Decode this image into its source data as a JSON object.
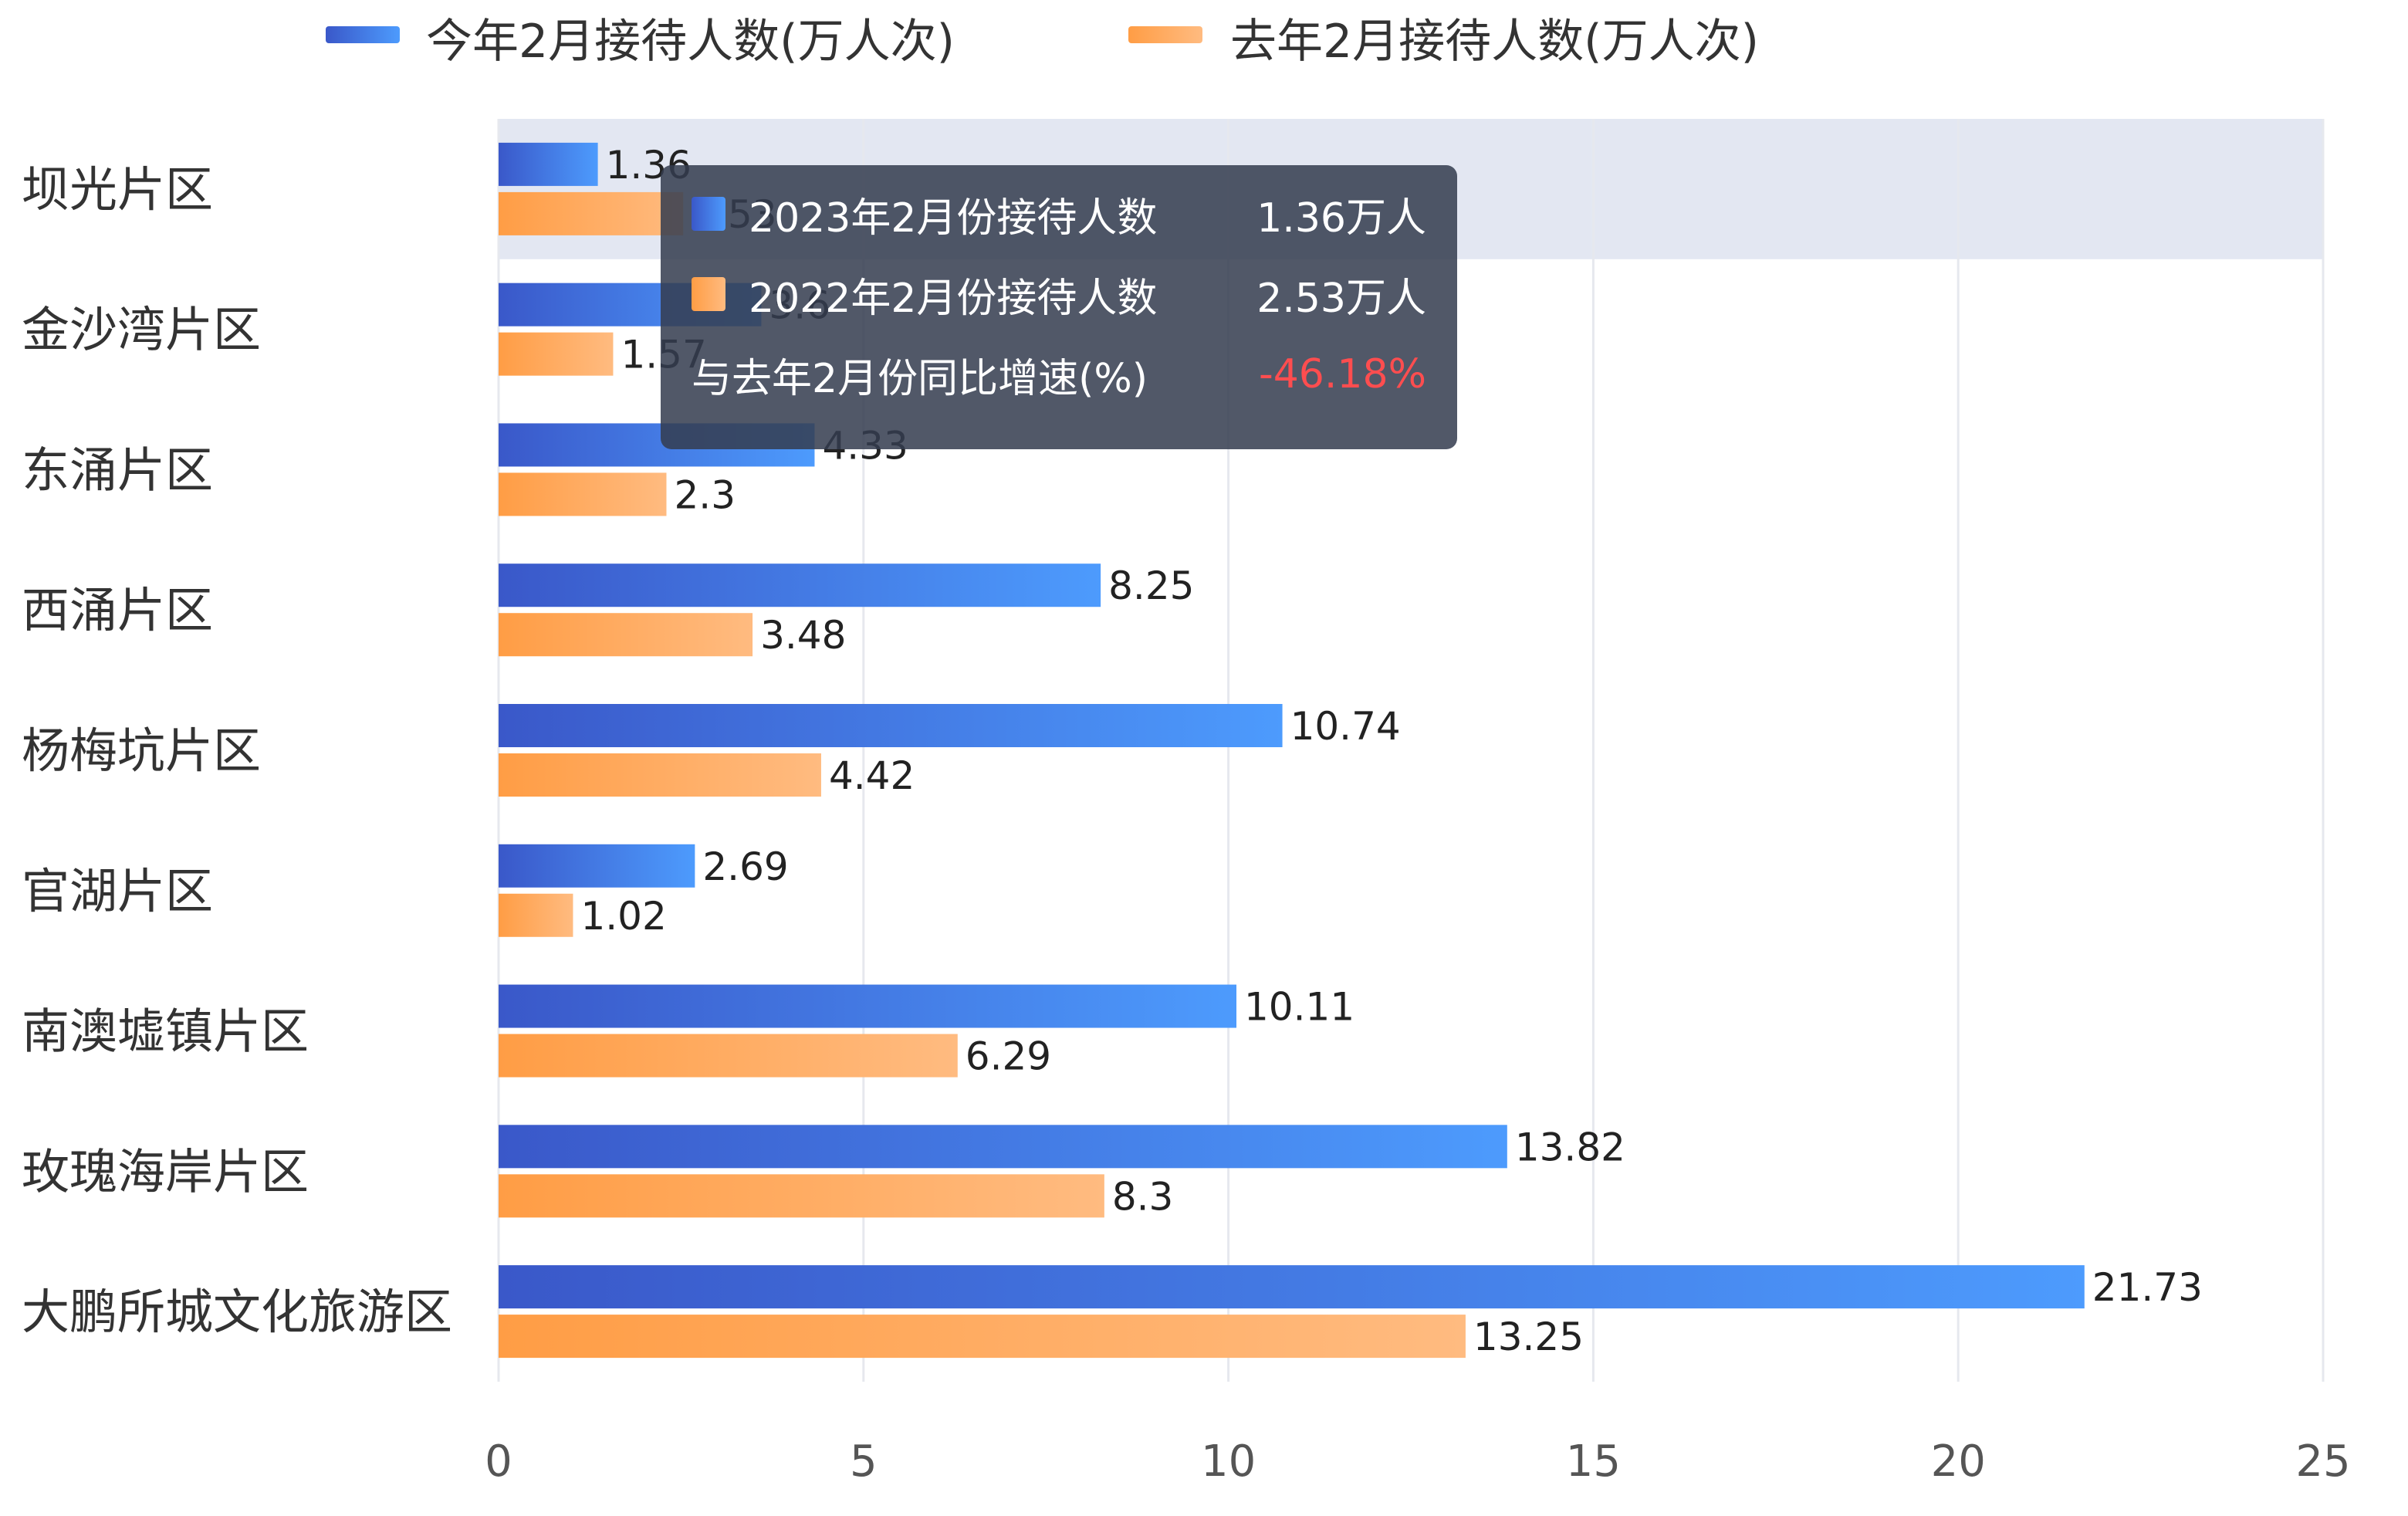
{
  "chart_data": {
    "type": "bar",
    "orientation": "horizontal",
    "categories": [
      "坝光片区",
      "金沙湾片区",
      "东涌片区",
      "西涌片区",
      "杨梅坑片区",
      "官湖片区",
      "南澳墟镇片区",
      "玫瑰海岸片区",
      "大鹏所城文化旅游区"
    ],
    "series": [
      {
        "name": "今年2月接待人数(万人次)",
        "values": [
          1.36,
          3.6,
          4.33,
          8.25,
          10.74,
          2.69,
          10.11,
          13.82,
          21.73
        ]
      },
      {
        "name": "去年2月接待人数(万人次)",
        "values": [
          2.53,
          1.57,
          2.3,
          3.48,
          4.42,
          1.02,
          6.29,
          8.3,
          13.25
        ]
      }
    ],
    "xlim": [
      0,
      25
    ],
    "xticks": [
      "0",
      "5",
      "10",
      "15",
      "20",
      "25"
    ],
    "grid": true,
    "legend_position": "top",
    "highlighted_category": "坝光片区",
    "colors": {
      "current": [
        "#3a58c9",
        "#4d9bfd"
      ],
      "previous": [
        "#ff9d45",
        "#ffbb80"
      ],
      "highlight": "#e3e7f2",
      "grid": "#e6e8ee"
    },
    "tooltip": {
      "rows": [
        {
          "name": "2023年2月份接待人数",
          "value": "1.36万人"
        },
        {
          "name": "2022年2月份接待人数",
          "value": "2.53万人"
        },
        {
          "name": "与去年2月份同比增速(%)",
          "value": "-46.18%"
        }
      ]
    }
  }
}
